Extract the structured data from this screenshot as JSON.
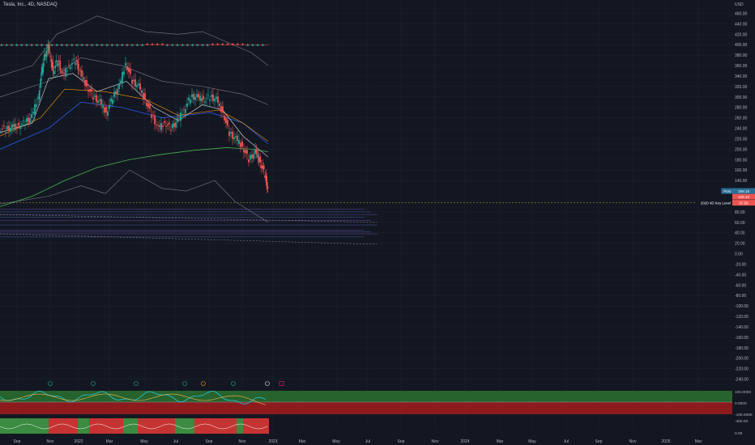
{
  "header": {
    "title": "Tesla, Inc., 4D, NASDAQ"
  },
  "colors": {
    "background": "#131722",
    "grid": "#1f2430",
    "up": "#26a69a",
    "down": "#ef5350",
    "axis_text": "#b2b5be",
    "green_zone": "#2e7d32",
    "red_zone": "#b71c1c",
    "price_badge": "#2a6f97"
  },
  "chart_data": [
    {
      "type": "line",
      "title": "",
      "xlabel": "",
      "ylabel": "",
      "currency_label": "USD",
      "x_ticks": [
        "Sep",
        "Nov",
        "2022",
        "Mar",
        "May",
        "Jul",
        "Sep",
        "Nov",
        "2023",
        "Mar",
        "May",
        "Jul",
        "Sep",
        "Nov",
        "2024",
        "Mar",
        "May",
        "Jul",
        "Sep",
        "Nov",
        "2025",
        "Mar"
      ],
      "y_ticks": [
        460,
        440,
        420,
        400,
        380,
        360,
        340,
        320,
        300,
        280,
        260,
        240,
        220,
        200,
        180,
        160,
        140,
        80,
        60,
        40,
        20,
        0,
        -20,
        -40,
        -60,
        -80,
        -100,
        -120,
        -140,
        -160,
        -180,
        -200,
        -220,
        -240
      ],
      "ylim": [
        -250,
        470
      ],
      "grid": true,
      "price_labels": [
        {
          "label": "Post",
          "value": "158.15",
          "y": 120
        },
        {
          "label": "",
          "value": "109.10",
          "y": 109
        },
        {
          "label": "2020 4D Key Level",
          "value": "97.50",
          "y": 97.5
        }
      ],
      "close_series": [
        {
          "x": 0,
          "y": 240
        },
        {
          "x": 8,
          "y": 238
        },
        {
          "x": 16,
          "y": 242
        },
        {
          "x": 24,
          "y": 245
        },
        {
          "x": 32,
          "y": 252
        },
        {
          "x": 40,
          "y": 262
        },
        {
          "x": 48,
          "y": 300
        },
        {
          "x": 54,
          "y": 370
        },
        {
          "x": 60,
          "y": 395
        },
        {
          "x": 66,
          "y": 350
        },
        {
          "x": 72,
          "y": 370
        },
        {
          "x": 78,
          "y": 340
        },
        {
          "x": 86,
          "y": 360
        },
        {
          "x": 94,
          "y": 370
        },
        {
          "x": 100,
          "y": 345
        },
        {
          "x": 108,
          "y": 320
        },
        {
          "x": 116,
          "y": 300
        },
        {
          "x": 124,
          "y": 290
        },
        {
          "x": 132,
          "y": 270
        },
        {
          "x": 140,
          "y": 300
        },
        {
          "x": 148,
          "y": 320
        },
        {
          "x": 156,
          "y": 365
        },
        {
          "x": 164,
          "y": 330
        },
        {
          "x": 172,
          "y": 320
        },
        {
          "x": 180,
          "y": 295
        },
        {
          "x": 188,
          "y": 265
        },
        {
          "x": 196,
          "y": 240
        },
        {
          "x": 204,
          "y": 250
        },
        {
          "x": 212,
          "y": 240
        },
        {
          "x": 220,
          "y": 255
        },
        {
          "x": 228,
          "y": 275
        },
        {
          "x": 236,
          "y": 300
        },
        {
          "x": 244,
          "y": 300
        },
        {
          "x": 252,
          "y": 295
        },
        {
          "x": 260,
          "y": 300
        },
        {
          "x": 268,
          "y": 295
        },
        {
          "x": 276,
          "y": 270
        },
        {
          "x": 284,
          "y": 230
        },
        {
          "x": 292,
          "y": 220
        },
        {
          "x": 300,
          "y": 205
        },
        {
          "x": 308,
          "y": 180
        },
        {
          "x": 316,
          "y": 195
        },
        {
          "x": 322,
          "y": 175
        },
        {
          "x": 328,
          "y": 150
        },
        {
          "x": 331,
          "y": 120
        }
      ],
      "ema_fast": [
        {
          "x": 0,
          "y": 232
        },
        {
          "x": 40,
          "y": 250
        },
        {
          "x": 60,
          "y": 335
        },
        {
          "x": 90,
          "y": 345
        },
        {
          "x": 120,
          "y": 310
        },
        {
          "x": 156,
          "y": 330
        },
        {
          "x": 190,
          "y": 280
        },
        {
          "x": 220,
          "y": 255
        },
        {
          "x": 250,
          "y": 285
        },
        {
          "x": 275,
          "y": 275
        },
        {
          "x": 300,
          "y": 225
        },
        {
          "x": 331,
          "y": 185
        }
      ],
      "ema_slow": [
        {
          "x": 0,
          "y": 225
        },
        {
          "x": 50,
          "y": 260
        },
        {
          "x": 80,
          "y": 315
        },
        {
          "x": 130,
          "y": 310
        },
        {
          "x": 180,
          "y": 295
        },
        {
          "x": 220,
          "y": 265
        },
        {
          "x": 270,
          "y": 275
        },
        {
          "x": 300,
          "y": 250
        },
        {
          "x": 331,
          "y": 215
        }
      ],
      "bb_upper": [
        {
          "x": 0,
          "y": 340
        },
        {
          "x": 40,
          "y": 360
        },
        {
          "x": 70,
          "y": 420
        },
        {
          "x": 100,
          "y": 440
        },
        {
          "x": 120,
          "y": 455
        },
        {
          "x": 150,
          "y": 440
        },
        {
          "x": 180,
          "y": 425
        },
        {
          "x": 220,
          "y": 420
        },
        {
          "x": 250,
          "y": 425
        },
        {
          "x": 280,
          "y": 405
        },
        {
          "x": 310,
          "y": 385
        },
        {
          "x": 331,
          "y": 360
        }
      ],
      "bb_mid": [
        {
          "x": 0,
          "y": 300
        },
        {
          "x": 60,
          "y": 330
        },
        {
          "x": 100,
          "y": 375
        },
        {
          "x": 150,
          "y": 360
        },
        {
          "x": 200,
          "y": 330
        },
        {
          "x": 250,
          "y": 320
        },
        {
          "x": 300,
          "y": 305
        },
        {
          "x": 331,
          "y": 285
        }
      ],
      "blue_band": [
        {
          "x": 0,
          "y": 200
        },
        {
          "x": 60,
          "y": 240
        },
        {
          "x": 100,
          "y": 290
        },
        {
          "x": 150,
          "y": 280
        },
        {
          "x": 200,
          "y": 260
        },
        {
          "x": 260,
          "y": 270
        },
        {
          "x": 300,
          "y": 250
        },
        {
          "x": 331,
          "y": 210
        }
      ],
      "ma_200": [
        {
          "x": 0,
          "y": 90
        },
        {
          "x": 40,
          "y": 110
        },
        {
          "x": 80,
          "y": 140
        },
        {
          "x": 120,
          "y": 165
        },
        {
          "x": 160,
          "y": 180
        },
        {
          "x": 200,
          "y": 190
        },
        {
          "x": 240,
          "y": 198
        },
        {
          "x": 280,
          "y": 203
        },
        {
          "x": 310,
          "y": 200
        },
        {
          "x": 331,
          "y": 195
        }
      ],
      "lower_band": [
        {
          "x": 0,
          "y": 95
        },
        {
          "x": 60,
          "y": 110
        },
        {
          "x": 100,
          "y": 130
        },
        {
          "x": 130,
          "y": 115
        },
        {
          "x": 160,
          "y": 160
        },
        {
          "x": 200,
          "y": 125
        },
        {
          "x": 230,
          "y": 120
        },
        {
          "x": 265,
          "y": 140
        },
        {
          "x": 290,
          "y": 100
        },
        {
          "x": 331,
          "y": 60
        }
      ],
      "triangle_row_value": 400,
      "horizontal_levels": [
        85,
        80,
        75,
        70,
        64,
        55,
        45,
        42,
        38,
        32
      ]
    }
  ]
}
